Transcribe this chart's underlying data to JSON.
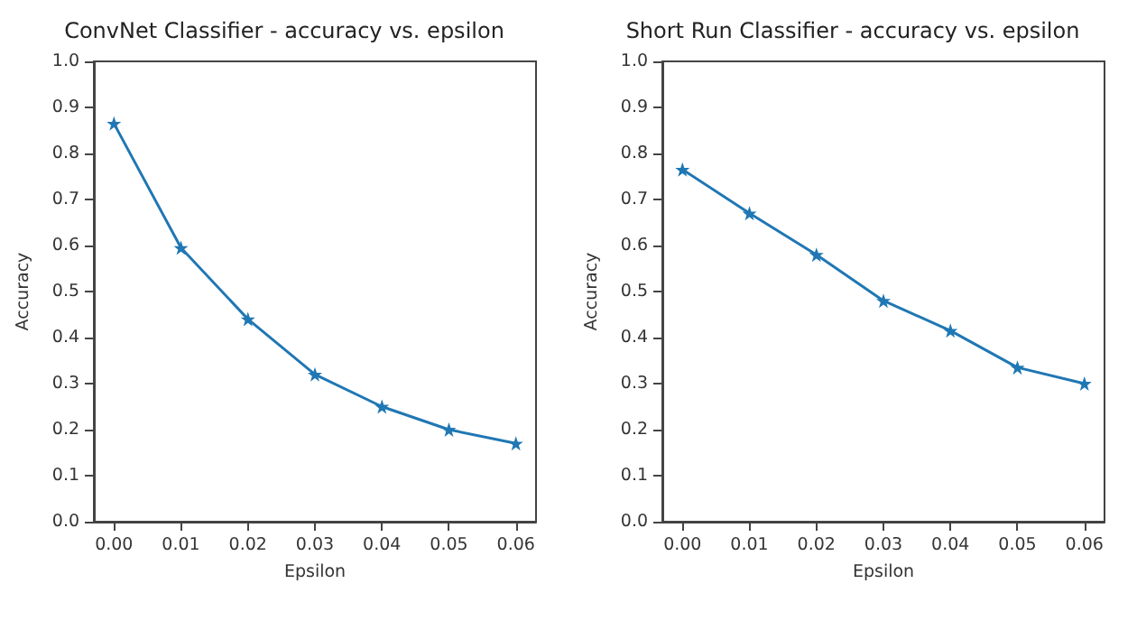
{
  "chart_data": [
    {
      "type": "line",
      "title": "ConvNet Classifier - accuracy vs. epsilon",
      "xlabel": "Epsilon",
      "ylabel": "Accuracy",
      "x": [
        0,
        0.01,
        0.02,
        0.03,
        0.04,
        0.05,
        0.06
      ],
      "series": [
        {
          "color": "#1f77b4",
          "values": [
            0.865,
            0.595,
            0.44,
            0.32,
            0.25,
            0.2,
            0.17
          ]
        }
      ],
      "marker": "star",
      "line_style": "solid",
      "grid": false,
      "xlim": [
        -0.003,
        0.063
      ],
      "xticks": [
        {
          "value": 0,
          "label": "0.00"
        },
        {
          "value": 0.01,
          "label": "0.01"
        },
        {
          "value": 0.02,
          "label": "0.02"
        },
        {
          "value": 0.03,
          "label": "0.03"
        },
        {
          "value": 0.04,
          "label": "0.04"
        },
        {
          "value": 0.05,
          "label": "0.05"
        },
        {
          "value": 0.06,
          "label": "0.06"
        }
      ],
      "ylim": [
        0,
        1
      ],
      "yticks": [
        {
          "value": 0,
          "label": "0.0"
        },
        {
          "value": 0.1,
          "label": "0.1"
        },
        {
          "value": 0.2,
          "label": "0.2"
        },
        {
          "value": 0.3,
          "label": "0.3"
        },
        {
          "value": 0.4,
          "label": "0.4"
        },
        {
          "value": 0.5,
          "label": "0.5"
        },
        {
          "value": 0.6,
          "label": "0.6"
        },
        {
          "value": 0.7,
          "label": "0.7"
        },
        {
          "value": 0.8,
          "label": "0.8"
        },
        {
          "value": 0.9,
          "label": "0.9"
        },
        {
          "value": 1,
          "label": "1.0"
        }
      ]
    },
    {
      "type": "line",
      "title": "Short Run Classifier - accuracy vs. epsilon",
      "xlabel": "Epsilon",
      "ylabel": "Accuracy",
      "x": [
        0,
        0.01,
        0.02,
        0.03,
        0.04,
        0.05,
        0.06
      ],
      "series": [
        {
          "color": "#1f77b4",
          "values": [
            0.765,
            0.67,
            0.58,
            0.48,
            0.415,
            0.335,
            0.3
          ]
        }
      ],
      "marker": "star",
      "line_style": "solid",
      "grid": false,
      "xlim": [
        -0.003,
        0.063
      ],
      "xticks": [
        {
          "value": 0,
          "label": "0.00"
        },
        {
          "value": 0.01,
          "label": "0.01"
        },
        {
          "value": 0.02,
          "label": "0.02"
        },
        {
          "value": 0.03,
          "label": "0.03"
        },
        {
          "value": 0.04,
          "label": "0.04"
        },
        {
          "value": 0.05,
          "label": "0.05"
        },
        {
          "value": 0.06,
          "label": "0.06"
        }
      ],
      "ylim": [
        0,
        1
      ],
      "yticks": [
        {
          "value": 0,
          "label": "0.0"
        },
        {
          "value": 0.1,
          "label": "0.1"
        },
        {
          "value": 0.2,
          "label": "0.2"
        },
        {
          "value": 0.3,
          "label": "0.3"
        },
        {
          "value": 0.4,
          "label": "0.4"
        },
        {
          "value": 0.5,
          "label": "0.5"
        },
        {
          "value": 0.6,
          "label": "0.6"
        },
        {
          "value": 0.7,
          "label": "0.7"
        },
        {
          "value": 0.8,
          "label": "0.8"
        },
        {
          "value": 0.9,
          "label": "0.9"
        },
        {
          "value": 1,
          "label": "1.0"
        }
      ]
    }
  ]
}
